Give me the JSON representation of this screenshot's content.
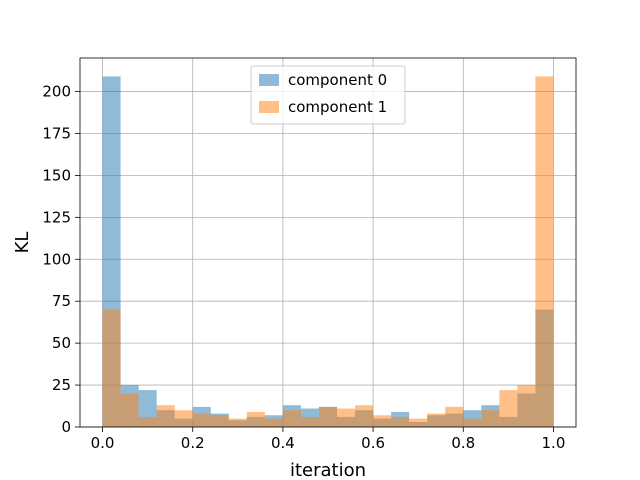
{
  "chart_data": {
    "type": "bar",
    "title": "",
    "xlabel": "iteration",
    "ylabel": "KL",
    "xlim": [
      -0.05,
      1.05
    ],
    "ylim": [
      0,
      220
    ],
    "xticks": [
      0.0,
      0.2,
      0.4,
      0.6,
      0.8,
      1.0
    ],
    "xtick_labels": [
      "0.0",
      "0.2",
      "0.4",
      "0.6",
      "0.8",
      "1.0"
    ],
    "yticks": [
      0,
      25,
      50,
      75,
      100,
      125,
      150,
      175,
      200
    ],
    "ytick_labels": [
      "0",
      "25",
      "50",
      "75",
      "100",
      "125",
      "150",
      "175",
      "200"
    ],
    "grid": true,
    "legend_position": "top-center",
    "bin_edges": [
      0.0,
      0.04,
      0.08,
      0.12,
      0.16,
      0.2,
      0.24,
      0.28,
      0.32,
      0.36,
      0.4,
      0.44,
      0.48,
      0.52,
      0.56,
      0.6,
      0.64,
      0.68,
      0.72,
      0.76,
      0.8,
      0.84,
      0.88,
      0.92,
      0.96,
      1.0
    ],
    "series": [
      {
        "name": "component 0",
        "color": "#1f77b4",
        "alpha": 0.5,
        "values": [
          209,
          25,
          22,
          10,
          5,
          12,
          8,
          4,
          6,
          7,
          13,
          11,
          12,
          6,
          10,
          5,
          9,
          3,
          7,
          8,
          10,
          13,
          6,
          20,
          70
        ]
      },
      {
        "name": "component 1",
        "color": "#ff7f0e",
        "alpha": 0.5,
        "values": [
          70,
          20,
          6,
          13,
          10,
          8,
          7,
          5,
          9,
          5,
          10,
          6,
          12,
          11,
          13,
          7,
          6,
          5,
          8,
          12,
          5,
          10,
          22,
          25,
          209
        ]
      }
    ]
  }
}
